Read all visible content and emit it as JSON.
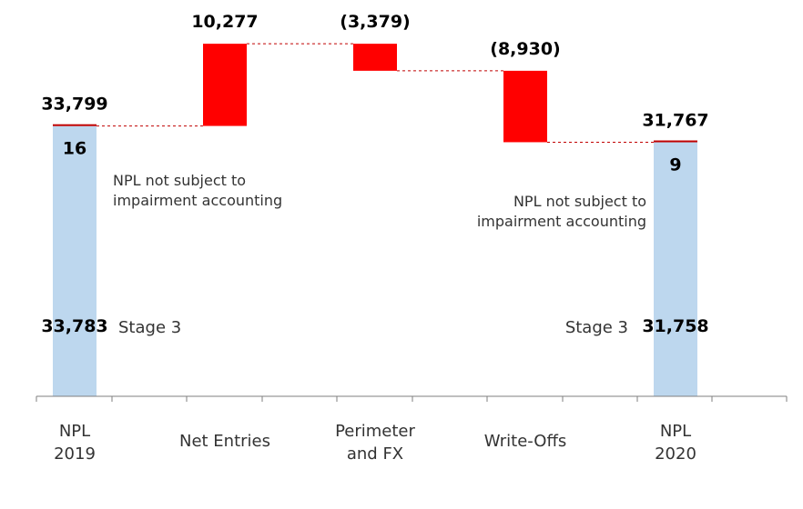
{
  "chart_data": {
    "type": "bar",
    "subtype": "waterfall",
    "title": "",
    "xlabel": "",
    "ylabel": "",
    "categories": [
      [
        "NPL",
        "2019"
      ],
      [
        "Net Entries"
      ],
      [
        "Perimeter",
        "and FX"
      ],
      [
        "Write-Offs"
      ],
      [
        "NPL",
        "2020"
      ]
    ],
    "ylim": [
      0,
      45000
    ],
    "bars": [
      {
        "kind": "total",
        "category": "NPL 2019",
        "total": 33799,
        "total_label": "33,799",
        "segments": [
          {
            "name": "Stage 3",
            "value": 33783,
            "label": "33,783"
          },
          {
            "name": "NPL not subject to impairment accounting",
            "value": 16,
            "label": "16"
          }
        ]
      },
      {
        "kind": "delta",
        "category": "Net Entries",
        "value": 10277,
        "label": "10,277"
      },
      {
        "kind": "delta",
        "category": "Perimeter and FX",
        "value": -3379,
        "label": "(3,379)"
      },
      {
        "kind": "delta",
        "category": "Write-Offs",
        "value": -8930,
        "label": "(8,930)"
      },
      {
        "kind": "total",
        "category": "NPL 2020",
        "total": 31767,
        "total_label": "31,767",
        "segments": [
          {
            "name": "Stage 3",
            "value": 31758,
            "label": "31,758"
          },
          {
            "name": "NPL not subject to impairment accounting",
            "value": 9,
            "label": "9"
          }
        ]
      }
    ],
    "annotations": {
      "note_2019": [
        "NPL not subject to",
        "impairment accounting"
      ],
      "note_2020": [
        "NPL not subject to",
        "impairment accounting"
      ],
      "stage_2019": "Stage 3",
      "stage_2020": "Stage 3"
    },
    "colors": {
      "total": "#bdd7ee",
      "increase": "#ff0000",
      "decrease": "#ff0000",
      "cap": "#c00000",
      "connector": "#c00000",
      "axis": "#7f7f7f"
    }
  }
}
